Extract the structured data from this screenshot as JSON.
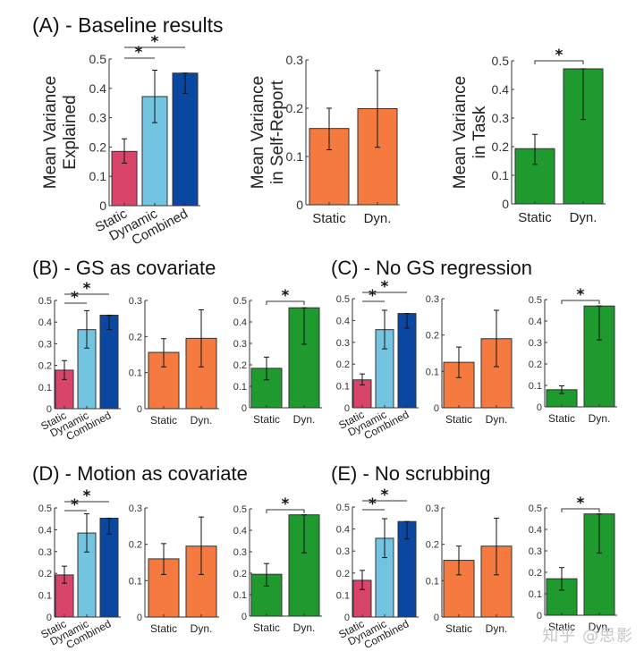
{
  "panel_titles": {
    "A": "(A) - Baseline results",
    "B": "(B) - GS as covariate",
    "C": "(C) - No GS regression",
    "D": "(D) - Motion as covariate",
    "E": "(E) - No scrubbing"
  },
  "watermark": "知乎 @思影",
  "colors": {
    "static": "#d9456a",
    "dynamic": "#72c4e0",
    "combined": "#0a47a0",
    "self_report": "#f47a3f",
    "task": "#1f9a2f"
  },
  "chart_data": [
    {
      "id": "A1",
      "panel": "A",
      "type": "bar",
      "title": "",
      "ylabel": [
        "Mean Variance",
        "Explained"
      ],
      "categories": [
        "Static",
        "Dynamic",
        "Combined"
      ],
      "values": [
        0.185,
        0.372,
        0.452
      ],
      "err_low": [
        0.145,
        0.283,
        0.383
      ],
      "err_high": [
        0.228,
        0.462,
        0.452
      ],
      "ylim": [
        0,
        0.5
      ],
      "yticks": [
        0,
        0.1,
        0.2,
        0.3,
        0.4,
        0.5
      ],
      "ytick_labels": [
        "0",
        "0.1",
        "0.2",
        "0.3",
        "0.4",
        "0.5"
      ],
      "significance": [
        {
          "from": 0,
          "to": 1,
          "label": "*"
        },
        {
          "from": 0,
          "to": 2,
          "label": "*"
        }
      ],
      "color_keys": [
        "static",
        "dynamic",
        "combined"
      ],
      "rotated_xlabels": true
    },
    {
      "id": "A2",
      "panel": "A",
      "type": "bar",
      "title": "",
      "ylabel": [
        "Mean Variance",
        "in Self-Report"
      ],
      "categories": [
        "Static",
        "Dyn."
      ],
      "values": [
        0.158,
        0.199
      ],
      "err_low": [
        0.114,
        0.119
      ],
      "err_high": [
        0.2,
        0.278
      ],
      "ylim": [
        0,
        0.3
      ],
      "yticks": [
        0,
        0.1,
        0.2,
        0.3
      ],
      "ytick_labels": [
        "0",
        "0.1",
        "0.2",
        "0.3"
      ],
      "significance": [],
      "color_keys": [
        "self_report",
        "self_report"
      ],
      "rotated_xlabels": false
    },
    {
      "id": "A3",
      "panel": "A",
      "type": "bar",
      "title": "",
      "ylabel": [
        "Mean Variance",
        "in Task"
      ],
      "categories": [
        "Static",
        "Dyn."
      ],
      "values": [
        0.193,
        0.472
      ],
      "err_low": [
        0.138,
        0.295
      ],
      "err_high": [
        0.243,
        0.472
      ],
      "ylim": [
        0,
        0.5
      ],
      "yticks": [
        0,
        0.1,
        0.2,
        0.3,
        0.4,
        0.5
      ],
      "ytick_labels": [
        "0",
        "0.1",
        "0.2",
        "0.3",
        "0.4",
        "0.5"
      ],
      "significance": [
        {
          "from": 0,
          "to": 1,
          "label": "*"
        }
      ],
      "color_keys": [
        "task",
        "task"
      ],
      "rotated_xlabels": false
    },
    {
      "id": "B1",
      "panel": "B",
      "type": "bar",
      "categories": [
        "Static",
        "Dynamic",
        "Combined"
      ],
      "values": [
        0.178,
        0.365,
        0.432
      ],
      "err_low": [
        0.135,
        0.28,
        0.365
      ],
      "err_high": [
        0.222,
        0.453,
        0.432
      ],
      "ylim": [
        0,
        0.5
      ],
      "yticks": [
        0,
        0.1,
        0.2,
        0.3,
        0.4,
        0.5
      ],
      "ytick_labels": [
        "0",
        "0.1",
        "0.2",
        "0.3",
        "0.4",
        "0.5"
      ],
      "significance": [
        {
          "from": 0,
          "to": 1,
          "label": "*"
        },
        {
          "from": 0,
          "to": 2,
          "label": "*"
        }
      ],
      "color_keys": [
        "static",
        "dynamic",
        "combined"
      ],
      "rotated_xlabels": true
    },
    {
      "id": "B2",
      "panel": "B",
      "type": "bar",
      "categories": [
        "Static",
        "Dyn."
      ],
      "values": [
        0.156,
        0.195
      ],
      "err_low": [
        0.116,
        0.116
      ],
      "err_high": [
        0.194,
        0.274
      ],
      "ylim": [
        0,
        0.3
      ],
      "yticks": [
        0,
        0.1,
        0.2,
        0.3
      ],
      "ytick_labels": [
        "0",
        "0.1",
        "0.2",
        "0.3"
      ],
      "significance": [],
      "color_keys": [
        "self_report",
        "self_report"
      ],
      "rotated_xlabels": false
    },
    {
      "id": "B3",
      "panel": "B",
      "type": "bar",
      "categories": [
        "Static",
        "Dyn."
      ],
      "values": [
        0.184,
        0.466
      ],
      "err_low": [
        0.13,
        0.296
      ],
      "err_high": [
        0.236,
        0.466
      ],
      "ylim": [
        0,
        0.5
      ],
      "yticks": [
        0,
        0.1,
        0.2,
        0.3,
        0.4,
        0.5
      ],
      "ytick_labels": [
        "0",
        "0.1",
        "0.2",
        "0.3",
        "0.4",
        "0.5"
      ],
      "significance": [
        {
          "from": 0,
          "to": 1,
          "label": "*"
        }
      ],
      "color_keys": [
        "task",
        "task"
      ],
      "rotated_xlabels": false
    },
    {
      "id": "C1",
      "panel": "C",
      "type": "bar",
      "categories": [
        "Static",
        "Dynamic",
        "Combined"
      ],
      "values": [
        0.128,
        0.358,
        0.432
      ],
      "err_low": [
        0.105,
        0.27,
        0.365
      ],
      "err_high": [
        0.155,
        0.447,
        0.432
      ],
      "ylim": [
        0,
        0.5
      ],
      "yticks": [
        0,
        0.1,
        0.2,
        0.3,
        0.4,
        0.5
      ],
      "ytick_labels": [
        "0",
        "0.1",
        "0.2",
        "0.3",
        "0.4",
        "0.5"
      ],
      "significance": [
        {
          "from": 0,
          "to": 1,
          "label": "*"
        },
        {
          "from": 0,
          "to": 2,
          "label": "*"
        }
      ],
      "color_keys": [
        "static",
        "dynamic",
        "combined"
      ],
      "rotated_xlabels": true
    },
    {
      "id": "C2",
      "panel": "C",
      "type": "bar",
      "categories": [
        "Static",
        "Dyn."
      ],
      "values": [
        0.125,
        0.19
      ],
      "err_low": [
        0.083,
        0.113
      ],
      "err_high": [
        0.167,
        0.268
      ],
      "ylim": [
        0,
        0.3
      ],
      "yticks": [
        0,
        0.1,
        0.2,
        0.3
      ],
      "ytick_labels": [
        "0",
        "0.1",
        "0.2",
        "0.3"
      ],
      "significance": [],
      "color_keys": [
        "self_report",
        "self_report"
      ],
      "rotated_xlabels": false
    },
    {
      "id": "C3",
      "panel": "C",
      "type": "bar",
      "categories": [
        "Static",
        "Dyn."
      ],
      "values": [
        0.08,
        0.47
      ],
      "err_low": [
        0.062,
        0.312
      ],
      "err_high": [
        0.098,
        0.47
      ],
      "ylim": [
        0,
        0.5
      ],
      "yticks": [
        0,
        0.1,
        0.2,
        0.3,
        0.4,
        0.5
      ],
      "ytick_labels": [
        "0",
        "0.1",
        "0.2",
        "0.3",
        "0.4",
        "0.5"
      ],
      "significance": [
        {
          "from": 0,
          "to": 1,
          "label": "*"
        }
      ],
      "color_keys": [
        "task",
        "task"
      ],
      "rotated_xlabels": false
    },
    {
      "id": "D1",
      "panel": "D",
      "type": "bar",
      "categories": [
        "Static",
        "Dynamic",
        "Combined"
      ],
      "values": [
        0.193,
        0.385,
        0.453
      ],
      "err_low": [
        0.155,
        0.298,
        0.38
      ],
      "err_high": [
        0.233,
        0.473,
        0.453
      ],
      "ylim": [
        0,
        0.5
      ],
      "yticks": [
        0,
        0.1,
        0.2,
        0.3,
        0.4,
        0.5
      ],
      "ytick_labels": [
        "0",
        "0.1",
        "0.2",
        "0.3",
        "0.4",
        "0.5"
      ],
      "significance": [
        {
          "from": 0,
          "to": 1,
          "label": "*"
        },
        {
          "from": 0,
          "to": 2,
          "label": "*"
        }
      ],
      "color_keys": [
        "static",
        "dynamic",
        "combined"
      ],
      "rotated_xlabels": true
    },
    {
      "id": "D2",
      "panel": "D",
      "type": "bar",
      "categories": [
        "Static",
        "Dyn."
      ],
      "values": [
        0.16,
        0.195
      ],
      "err_low": [
        0.117,
        0.117
      ],
      "err_high": [
        0.202,
        0.275
      ],
      "ylim": [
        0,
        0.3
      ],
      "yticks": [
        0,
        0.1,
        0.2,
        0.3
      ],
      "ytick_labels": [
        "0",
        "0.1",
        "0.2",
        "0.3"
      ],
      "significance": [],
      "color_keys": [
        "self_report",
        "self_report"
      ],
      "rotated_xlabels": false
    },
    {
      "id": "D3",
      "panel": "D",
      "type": "bar",
      "categories": [
        "Static",
        "Dyn."
      ],
      "values": [
        0.195,
        0.472
      ],
      "err_low": [
        0.14,
        0.295
      ],
      "err_high": [
        0.245,
        0.472
      ],
      "ylim": [
        0,
        0.5
      ],
      "yticks": [
        0,
        0.1,
        0.2,
        0.3,
        0.4,
        0.5
      ],
      "ytick_labels": [
        "0",
        "0.1",
        "0.2",
        "0.3",
        "0.4",
        "0.5"
      ],
      "significance": [
        {
          "from": 0,
          "to": 1,
          "label": "*"
        }
      ],
      "color_keys": [
        "task",
        "task"
      ],
      "rotated_xlabels": false
    },
    {
      "id": "E1",
      "panel": "E",
      "type": "bar",
      "categories": [
        "Static",
        "Dynamic",
        "Combined"
      ],
      "values": [
        0.167,
        0.358,
        0.434
      ],
      "err_low": [
        0.125,
        0.27,
        0.355
      ],
      "err_high": [
        0.212,
        0.447,
        0.434
      ],
      "ylim": [
        0,
        0.5
      ],
      "yticks": [
        0,
        0.1,
        0.2,
        0.3,
        0.4,
        0.5
      ],
      "ytick_labels": [
        "0",
        "0.1",
        "0.2",
        "0.3",
        "0.4",
        "0.5"
      ],
      "significance": [
        {
          "from": 0,
          "to": 1,
          "label": "*"
        },
        {
          "from": 0,
          "to": 2,
          "label": "*"
        }
      ],
      "color_keys": [
        "static",
        "dynamic",
        "combined"
      ],
      "rotated_xlabels": true
    },
    {
      "id": "E2",
      "panel": "E",
      "type": "bar",
      "categories": [
        "Static",
        "Dyn."
      ],
      "values": [
        0.156,
        0.195
      ],
      "err_low": [
        0.116,
        0.116
      ],
      "err_high": [
        0.195,
        0.272
      ],
      "ylim": [
        0,
        0.3
      ],
      "yticks": [
        0,
        0.1,
        0.2,
        0.3
      ],
      "ytick_labels": [
        "0",
        "0.1",
        "0.2",
        "0.3"
      ],
      "significance": [],
      "color_keys": [
        "self_report",
        "self_report"
      ],
      "rotated_xlabels": false
    },
    {
      "id": "E3",
      "panel": "E",
      "type": "bar",
      "categories": [
        "Static",
        "Dyn."
      ],
      "values": [
        0.17,
        0.472
      ],
      "err_low": [
        0.117,
        0.29
      ],
      "err_high": [
        0.222,
        0.472
      ],
      "ylim": [
        0,
        0.5
      ],
      "yticks": [
        0,
        0.1,
        0.2,
        0.3,
        0.4,
        0.5
      ],
      "ytick_labels": [
        "0",
        "0.1",
        "0.2",
        "0.3",
        "0.4",
        "0.5"
      ],
      "significance": [
        {
          "from": 0,
          "to": 1,
          "label": "*"
        }
      ],
      "color_keys": [
        "task",
        "task"
      ],
      "rotated_xlabels": false
    }
  ]
}
